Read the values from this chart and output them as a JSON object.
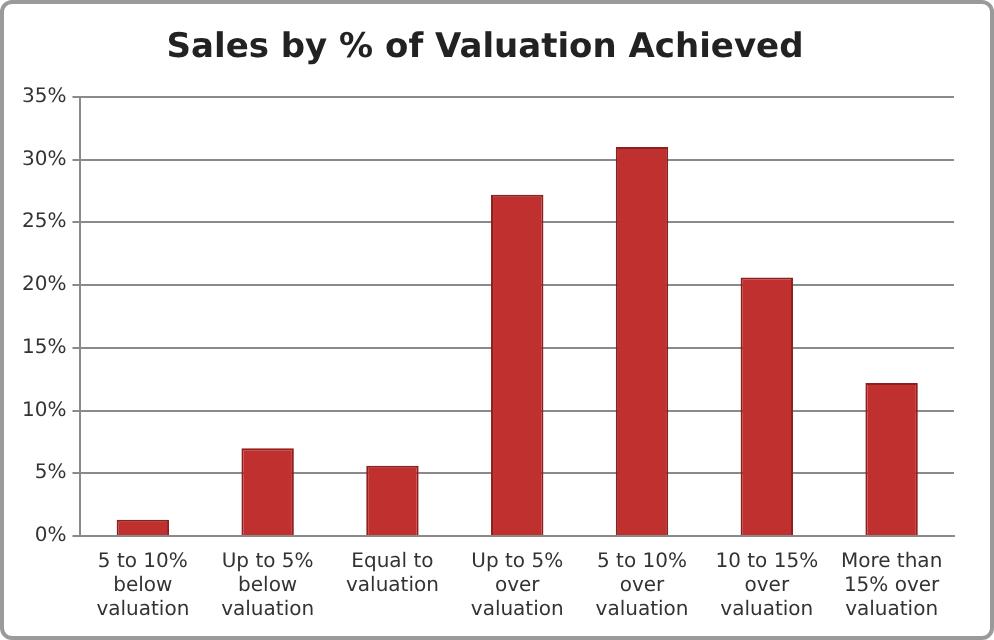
{
  "chart_data": {
    "type": "bar",
    "title": "Sales by % of Valuation Achieved",
    "categories": [
      "5 to 10% below valuation",
      "Up to 5% below valuation",
      "Equal to valuation",
      "Up to 5% over valuation",
      "5 to 10% over valuation",
      "10 to 15% over valuation",
      "More than 15% over valuation"
    ],
    "values": [
      1.3,
      7.0,
      5.6,
      27.2,
      31.0,
      20.6,
      12.2
    ],
    "color": "#c0302f",
    "ylim": [
      0,
      35
    ],
    "yticks": [
      {
        "value": 0,
        "label": "0%"
      },
      {
        "value": 5,
        "label": "5%"
      },
      {
        "value": 10,
        "label": "10%"
      },
      {
        "value": 15,
        "label": "15%"
      },
      {
        "value": 20,
        "label": "20%"
      },
      {
        "value": 25,
        "label": "25%"
      },
      {
        "value": 30,
        "label": "30%"
      },
      {
        "value": 35,
        "label": "35%"
      }
    ],
    "grid": "y"
  }
}
